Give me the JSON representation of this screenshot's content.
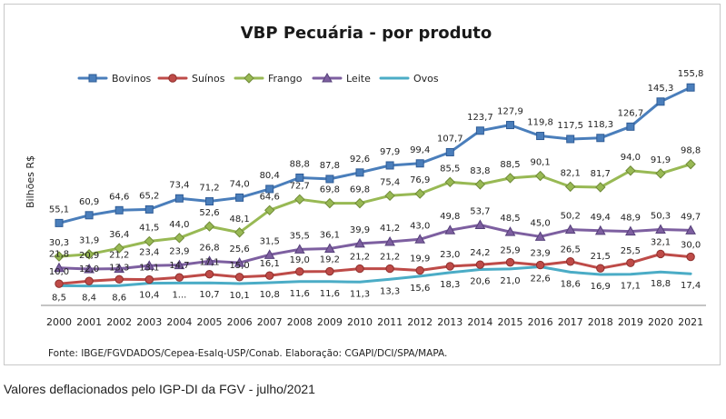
{
  "chart_data": {
    "type": "line",
    "title": "VBP Pecuária - por produto",
    "ylabel": "Bilhões R$",
    "xlabel": "",
    "ylim": [
      0,
      165
    ],
    "grid": false,
    "legend_position": "top",
    "categories": [
      "2000",
      "2001",
      "2002",
      "2003",
      "2004",
      "2005",
      "2006",
      "2007",
      "2008",
      "2009",
      "2010",
      "2011",
      "2012",
      "2013",
      "2014",
      "2015",
      "2016",
      "2017",
      "2018",
      "2019",
      "2020",
      "2021"
    ],
    "series": [
      {
        "name": "Bovinos",
        "color": "#4a7ebb",
        "marker": "square",
        "values": [
          55.1,
          60.9,
          64.6,
          65.2,
          73.4,
          71.2,
          74.0,
          80.4,
          88.8,
          87.8,
          92.6,
          97.9,
          99.4,
          107.7,
          123.7,
          127.9,
          119.8,
          117.5,
          118.3,
          126.7,
          145.3,
          155.8
        ],
        "labels": [
          "55,1",
          "60,9",
          "64,6",
          "65,2",
          "73,4",
          "71,2",
          "74,0",
          "80,4",
          "88,8",
          "87,8",
          "92,6",
          "97,9",
          "99,4",
          "107,7",
          "123,7",
          "127,9",
          "119,8",
          "117,5",
          "118,3",
          "126,7",
          "145,3",
          "155,8"
        ]
      },
      {
        "name": "Suínos",
        "color": "#be4b48",
        "marker": "circle",
        "values": [
          10.0,
          12.0,
          13.3,
          13.1,
          14.7,
          17.1,
          15.0,
          16.1,
          19.0,
          19.2,
          21.2,
          21.2,
          19.9,
          23.0,
          24.2,
          25.9,
          23.9,
          26.5,
          21.5,
          25.5,
          32.1,
          30.0
        ],
        "labels": [
          "10,0",
          "12,0",
          "13,3",
          "13,1",
          "14,7",
          "17,1",
          "15,0",
          "16,1",
          "19,0",
          "19,2",
          "21,2",
          "21,2",
          "19,9",
          "23,0",
          "24,2",
          "25,9",
          "23,9",
          "26,5",
          "21,5",
          "25,5",
          "32,1",
          "30,0"
        ]
      },
      {
        "name": "Frango",
        "color": "#98b954",
        "marker": "diamond",
        "values": [
          30.3,
          31.9,
          36.4,
          41.5,
          44.0,
          52.6,
          48.1,
          64.6,
          72.7,
          69.8,
          69.8,
          75.4,
          76.9,
          85.5,
          83.8,
          88.5,
          90.1,
          82.1,
          81.7,
          94.0,
          91.9,
          98.8
        ],
        "labels": [
          "30,3",
          "31,9",
          "36,4",
          "41,5",
          "44,0",
          "52,6",
          "48,1",
          "64,6",
          "72,7",
          "69,8",
          "69,8",
          "75,4",
          "76,9",
          "85,5",
          "83,8",
          "88,5",
          "90,1",
          "82,1",
          "81,7",
          "94,0",
          "91,9",
          "98,8"
        ]
      },
      {
        "name": "Leite",
        "color": "#7d5fa0",
        "marker": "triangle",
        "values": [
          21.8,
          20.9,
          21.2,
          23.4,
          23.9,
          26.8,
          25.6,
          31.5,
          35.5,
          36.1,
          39.9,
          41.2,
          43.0,
          49.8,
          53.7,
          48.5,
          45.0,
          50.2,
          49.4,
          48.9,
          50.3,
          49.7
        ],
        "labels": [
          "21,8",
          "20,9",
          "21,2",
          "23,4",
          "23,9",
          "26,8",
          "25,6",
          "31,5",
          "35,5",
          "36,1",
          "39,9",
          "41,2",
          "43,0",
          "49,8",
          "53,7",
          "48,5",
          "45,0",
          "50,2",
          "49,4",
          "48,9",
          "50,3",
          "49,7"
        ]
      },
      {
        "name": "Ovos",
        "color": "#4bacc6",
        "marker": "none",
        "values": [
          8.5,
          8.4,
          8.6,
          10.4,
          10.5,
          10.7,
          10.1,
          10.8,
          11.6,
          11.6,
          11.3,
          13.3,
          15.6,
          18.3,
          20.6,
          21.0,
          22.6,
          18.6,
          16.9,
          17.1,
          18.8,
          17.4
        ],
        "labels": [
          "8,5",
          "8,4",
          "8,6",
          "10,4",
          "1...",
          "10,7",
          "10,1",
          "10,8",
          "11,6",
          "11,6",
          "11,3",
          "13,3",
          "15,6",
          "18,3",
          "20,6",
          "21,0",
          "22,6",
          "18,6",
          "16,9",
          "17,1",
          "18,8",
          "17,4"
        ]
      }
    ]
  },
  "source_note": "Fonte: IBGE/FGVDADOS/Cepea-Esalq-USP/Conab. Elaboração: CGAPI/DCI/SPA/MAPA.",
  "caption": "Valores deflacionados pelo IGP-DI da FGV - julho/2021"
}
